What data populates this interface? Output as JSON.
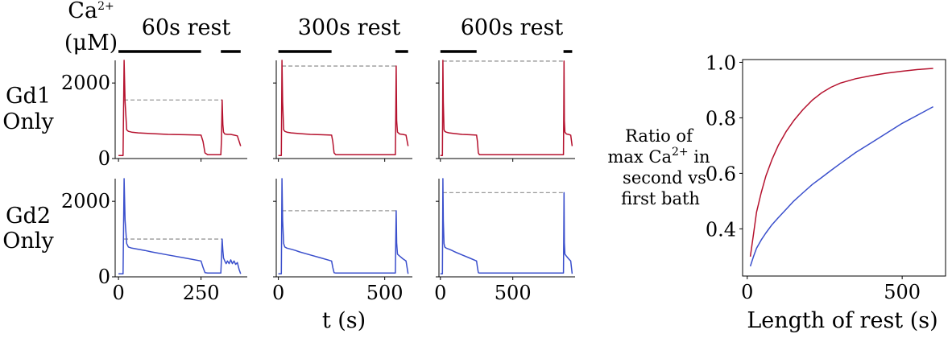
{
  "figure": {
    "row_labels": [
      {
        "line1": "Gd1",
        "line2": "Only"
      },
      {
        "line1": "Gd2",
        "line2": "Only"
      }
    ],
    "ca_label": {
      "line1": "Ca",
      "line1_sup": "2+",
      "line2": "(μM)"
    },
    "time_xlabel": "t (s)",
    "ratio_ylabel": {
      "line1": "Ratio of",
      "line2": "max Ca",
      "line2_sup": "2+",
      "line2_tail": " in",
      "line3": "second vs",
      "line4": "first bath"
    },
    "ratio_xlabel": "Length of rest (s)"
  },
  "colors": {
    "gd1": "#b5122e",
    "gd2": "#3a4fcc",
    "dashed": "#999999",
    "axis": "#000000"
  },
  "chart_data": [
    {
      "type": "line",
      "title": "60s rest",
      "row": "Gd1 Only",
      "xlim": [
        -10,
        390
      ],
      "ylim": [
        0,
        2600
      ],
      "xticks": [
        0,
        250
      ],
      "yticks": [
        0,
        2000
      ],
      "baths": [
        [
          0,
          250
        ],
        [
          310,
          370
        ]
      ],
      "dashed_level": 1550,
      "x": [
        0,
        14,
        17,
        20,
        25,
        30,
        40,
        60,
        100,
        150,
        200,
        250,
        256,
        262,
        270,
        290,
        305,
        310,
        312,
        314,
        316,
        318,
        322,
        330,
        340,
        350,
        360,
        370
      ],
      "y": [
        80,
        80,
        2600,
        1500,
        760,
        720,
        700,
        680,
        660,
        640,
        630,
        620,
        450,
        150,
        100,
        100,
        100,
        100,
        500,
        1550,
        900,
        700,
        650,
        640,
        640,
        620,
        600,
        330
      ]
    },
    {
      "type": "line",
      "title": "300s rest",
      "row": "Gd1 Only",
      "xlim": [
        -10,
        630
      ],
      "ylim": [
        0,
        2600
      ],
      "xticks": [
        0,
        500
      ],
      "yticks": [
        0,
        2000
      ],
      "baths": [
        [
          0,
          250
        ],
        [
          550,
          610
        ]
      ],
      "dashed_level": 2450,
      "x": [
        0,
        14,
        17,
        20,
        25,
        30,
        40,
        60,
        100,
        150,
        200,
        250,
        256,
        262,
        270,
        350,
        450,
        548,
        550,
        552,
        554,
        556,
        560,
        570,
        585,
        600,
        610
      ],
      "y": [
        80,
        80,
        2600,
        1500,
        760,
        720,
        700,
        680,
        660,
        640,
        630,
        620,
        450,
        150,
        100,
        100,
        100,
        100,
        100,
        1200,
        2450,
        1000,
        700,
        650,
        640,
        620,
        330
      ]
    },
    {
      "type": "line",
      "title": "600s rest",
      "row": "Gd1 Only",
      "xlim": [
        -10,
        930
      ],
      "ylim": [
        0,
        2600
      ],
      "xticks": [
        0,
        500
      ],
      "yticks": [
        0,
        2000
      ],
      "baths": [
        [
          0,
          250
        ],
        [
          850,
          910
        ]
      ],
      "dashed_level": 2580,
      "x": [
        0,
        14,
        17,
        20,
        25,
        30,
        40,
        60,
        100,
        150,
        200,
        250,
        256,
        262,
        270,
        400,
        600,
        848,
        850,
        852,
        854,
        856,
        860,
        870,
        885,
        900,
        910
      ],
      "y": [
        80,
        80,
        2600,
        1500,
        760,
        720,
        700,
        680,
        660,
        640,
        630,
        620,
        450,
        150,
        100,
        100,
        100,
        100,
        100,
        1300,
        2580,
        1000,
        700,
        650,
        640,
        620,
        330
      ]
    },
    {
      "type": "line",
      "title": "",
      "row": "Gd2 Only",
      "xlim": [
        -10,
        390
      ],
      "ylim": [
        0,
        2600
      ],
      "xticks": [
        0,
        250
      ],
      "yticks": [
        0,
        2000
      ],
      "dashed_level": 1000,
      "x": [
        0,
        14,
        17,
        20,
        25,
        30,
        40,
        60,
        80,
        100,
        150,
        200,
        250,
        256,
        262,
        270,
        290,
        305,
        310,
        312,
        314,
        316,
        318,
        322,
        326,
        330,
        335,
        340,
        345,
        350,
        355,
        360,
        365,
        370
      ],
      "y": [
        80,
        80,
        2600,
        1500,
        880,
        790,
        760,
        730,
        700,
        660,
        580,
        500,
        420,
        250,
        110,
        100,
        100,
        100,
        100,
        500,
        1000,
        700,
        500,
        420,
        350,
        420,
        350,
        450,
        350,
        420,
        330,
        380,
        200,
        80
      ]
    },
    {
      "type": "line",
      "title": "",
      "row": "Gd2 Only",
      "xlim": [
        -10,
        630
      ],
      "ylim": [
        0,
        2600
      ],
      "xticks": [
        0,
        500
      ],
      "yticks": [
        0,
        2000
      ],
      "dashed_level": 1750,
      "x": [
        0,
        14,
        17,
        20,
        25,
        30,
        40,
        60,
        80,
        100,
        150,
        200,
        250,
        256,
        262,
        270,
        350,
        450,
        548,
        550,
        552,
        554,
        556,
        560,
        570,
        585,
        600,
        610
      ],
      "y": [
        80,
        80,
        2600,
        1500,
        880,
        790,
        760,
        730,
        700,
        660,
        580,
        500,
        420,
        250,
        110,
        100,
        100,
        100,
        100,
        100,
        1000,
        1750,
        900,
        600,
        550,
        480,
        420,
        80
      ]
    },
    {
      "type": "line",
      "title": "",
      "row": "Gd2 Only",
      "xlim": [
        -10,
        930
      ],
      "ylim": [
        0,
        2600
      ],
      "xticks": [
        0,
        500
      ],
      "yticks": [
        0,
        2000
      ],
      "dashed_level": 2230,
      "x": [
        0,
        14,
        17,
        20,
        25,
        30,
        40,
        60,
        80,
        100,
        150,
        200,
        250,
        256,
        262,
        270,
        400,
        600,
        848,
        850,
        852,
        854,
        856,
        860,
        870,
        885,
        900,
        910
      ],
      "y": [
        80,
        80,
        2600,
        1500,
        880,
        790,
        760,
        730,
        700,
        660,
        580,
        500,
        420,
        250,
        110,
        100,
        100,
        100,
        100,
        100,
        1200,
        2230,
        900,
        600,
        550,
        480,
        420,
        80
      ]
    },
    {
      "type": "line",
      "title": "",
      "xlabel": "Length of rest (s)",
      "xlim": [
        -15,
        640
      ],
      "ylim": [
        0.23,
        1.01
      ],
      "xticks": [
        0,
        500
      ],
      "yticks": [
        0.4,
        0.6,
        0.8,
        1.0
      ],
      "series": [
        {
          "name": "Gd1",
          "x": [
            10,
            20,
            30,
            45,
            60,
            80,
            100,
            125,
            150,
            180,
            210,
            240,
            270,
            300,
            350,
            400,
            450,
            500,
            550,
            600
          ],
          "y": [
            0.3,
            0.38,
            0.46,
            0.53,
            0.59,
            0.65,
            0.7,
            0.75,
            0.79,
            0.83,
            0.864,
            0.89,
            0.91,
            0.925,
            0.941,
            0.952,
            0.961,
            0.968,
            0.974,
            0.978
          ]
        },
        {
          "name": "Gd2",
          "x": [
            10,
            20,
            30,
            45,
            60,
            80,
            100,
            125,
            150,
            180,
            210,
            240,
            270,
            300,
            350,
            400,
            450,
            500,
            550,
            600
          ],
          "y": [
            0.265,
            0.3,
            0.33,
            0.36,
            0.385,
            0.415,
            0.44,
            0.47,
            0.5,
            0.53,
            0.56,
            0.585,
            0.61,
            0.635,
            0.675,
            0.71,
            0.745,
            0.78,
            0.81,
            0.84
          ]
        }
      ]
    }
  ]
}
